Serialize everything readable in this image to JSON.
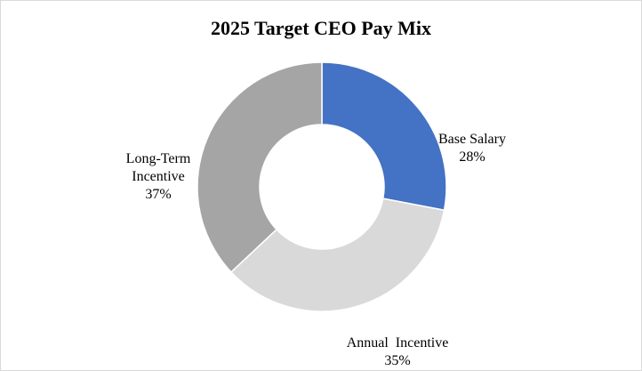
{
  "chart_data": {
    "type": "pie",
    "variant": "donut",
    "title": "2025 Target CEO Pay Mix",
    "slices": [
      {
        "name": "Base Salary",
        "label_lines": [
          "Base Salary"
        ],
        "value": 28,
        "value_label": "28%",
        "color": "#4472C4"
      },
      {
        "name": "Annual Incentive",
        "label_lines": [
          "Annual  Incentive"
        ],
        "value": 35,
        "value_label": "35%",
        "color": "#D9D9D9"
      },
      {
        "name": "Long-Term Incentive",
        "label_lines": [
          "Long-Term",
          "Incentive"
        ],
        "value": 37,
        "value_label": "37%",
        "color": "#A5A5A5"
      }
    ],
    "legend": "none",
    "start_angle": "12 o'clock",
    "direction": "clockwise"
  }
}
